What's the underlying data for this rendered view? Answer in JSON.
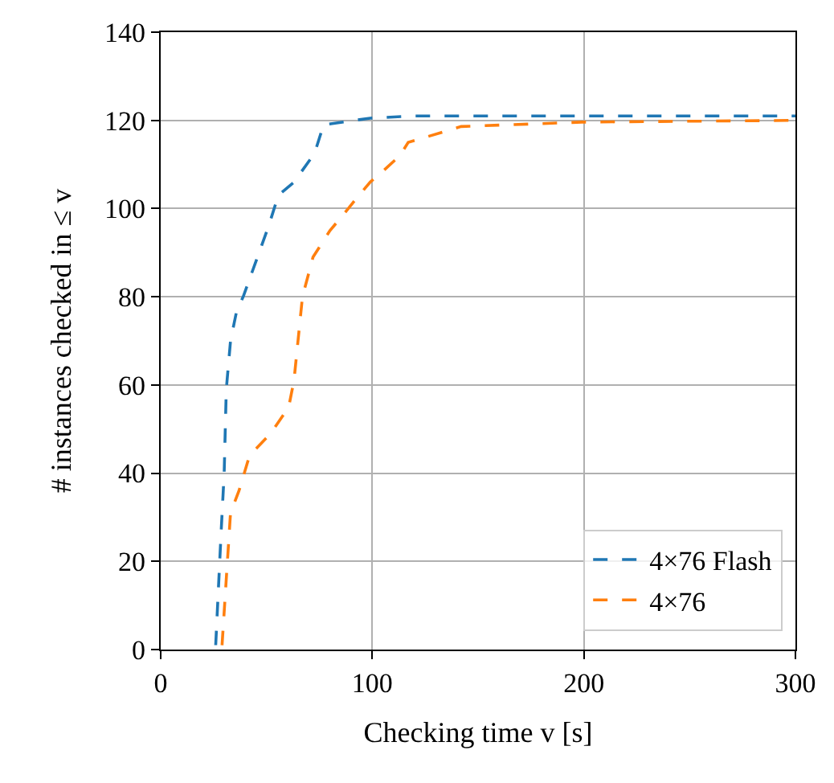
{
  "chart_data": {
    "type": "line",
    "xlabel": "Checking time v [s]",
    "ylabel": "# instances checked in ≤ v",
    "xlim": [
      0,
      300
    ],
    "xticks": [
      0,
      100,
      200,
      300
    ],
    "ylim": [
      0,
      140
    ],
    "yticks": [
      0,
      20,
      40,
      60,
      80,
      100,
      120,
      140
    ],
    "grid": true,
    "legend": "bottom right",
    "line_style": "dashed",
    "marker": "none",
    "series": [
      {
        "name": "4×76 Flash",
        "color": "#1f77b4",
        "x": [
          26,
          28.6,
          30,
          31,
          33,
          36,
          39,
          51,
          55.6,
          63,
          72.7,
          77,
          99,
          120,
          200,
          300
        ],
        "values": [
          1,
          27,
          40,
          59,
          70,
          77,
          80,
          96,
          103,
          106,
          112.5,
          119,
          120.5,
          121,
          121,
          121
        ]
      },
      {
        "name": "4×76",
        "color": "#ff7f0e",
        "x": [
          29,
          33,
          37,
          42,
          52,
          60.5,
          63,
          67,
          72,
          80,
          87,
          92,
          99,
          104,
          113,
          117,
          142,
          199,
          300
        ],
        "values": [
          1,
          31,
          36,
          44,
          49,
          55,
          61,
          80,
          89,
          95,
          99,
          102,
          106,
          108,
          112,
          115,
          118.6,
          119.6,
          120
        ]
      }
    ]
  }
}
